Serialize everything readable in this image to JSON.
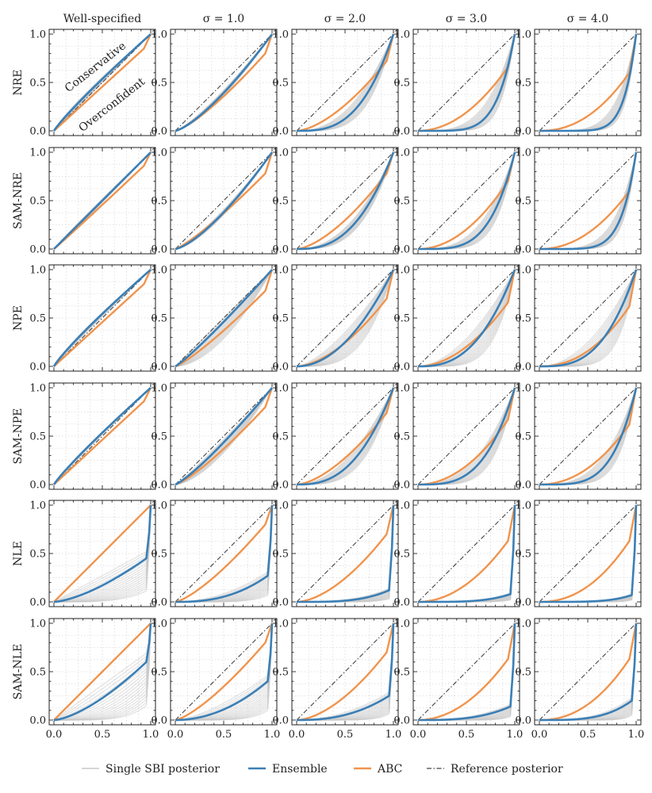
{
  "chart_data": {
    "type": "line",
    "description_grid": "6 rows x 5 columns of calibration curves",
    "columns": [
      "Well-specified",
      "σ = 1.0",
      "σ = 2.0",
      "σ = 3.0",
      "σ = 4.0"
    ],
    "rows": [
      "NRE",
      "SAM-NRE",
      "NPE",
      "SAM-NPE",
      "NLE",
      "SAM-NLE"
    ],
    "xlim": [
      0,
      1
    ],
    "ylim": [
      0,
      1
    ],
    "x_ticks": [
      "0.0",
      "0.5",
      "1.0"
    ],
    "y_ticks": [
      "0.0",
      "0.5",
      "1.0"
    ],
    "grid": true,
    "annotations": {
      "upper": "Conservative",
      "lower": "Overconfident"
    },
    "legend": {
      "position": "bottom",
      "entries": [
        {
          "key": "single",
          "label": "Single SBI posterior",
          "color": "#c8c8c8"
        },
        {
          "key": "ensemble",
          "label": "Ensemble",
          "color": "#3a7fb6"
        },
        {
          "key": "abc",
          "label": "ABC",
          "color": "#f0944d"
        },
        {
          "key": "reference",
          "label": "Reference posterior",
          "color": "#444444"
        }
      ]
    },
    "curve_model": "y = x^p, with a final rise to 1.0 when end value < 1",
    "panels": [
      [
        {
          "ens": [
            0.9,
            1.0
          ],
          "abc": [
            1.0,
            0.85
          ],
          "band": [
            0.85,
            1.0
          ]
        },
        {
          "ens": [
            1.35,
            1.0
          ],
          "abc": [
            1.3,
            0.8
          ],
          "band": [
            1.25,
            1.45
          ]
        },
        {
          "ens": [
            3.0,
            1.0
          ],
          "abc": [
            1.6,
            0.72
          ],
          "band": [
            2.3,
            4.0
          ]
        },
        {
          "ens": [
            5.5,
            1.0
          ],
          "abc": [
            2.0,
            0.66
          ],
          "band": [
            3.5,
            7.5
          ]
        },
        {
          "ens": [
            8.0,
            1.0
          ],
          "abc": [
            2.2,
            0.6
          ],
          "band": [
            5.0,
            10.0
          ]
        }
      ],
      [
        {
          "ens": [
            1.0,
            1.0
          ],
          "abc": [
            1.02,
            0.86
          ],
          "band": [
            0.95,
            1.05
          ]
        },
        {
          "ens": [
            1.4,
            1.0
          ],
          "abc": [
            1.2,
            0.78
          ],
          "band": [
            1.3,
            1.5
          ]
        },
        {
          "ens": [
            2.6,
            1.0
          ],
          "abc": [
            1.55,
            0.78
          ],
          "band": [
            2.2,
            3.2
          ]
        },
        {
          "ens": [
            4.0,
            1.0
          ],
          "abc": [
            2.0,
            0.7
          ],
          "band": [
            3.0,
            5.5
          ]
        },
        {
          "ens": [
            6.5,
            1.0
          ],
          "abc": [
            2.1,
            0.6
          ],
          "band": [
            4.5,
            8.5
          ]
        }
      ],
      [
        {
          "ens": [
            0.88,
            1.0
          ],
          "abc": [
            1.0,
            0.85
          ],
          "band": [
            0.85,
            0.95
          ]
        },
        {
          "ens": [
            1.12,
            1.0
          ],
          "abc": [
            1.2,
            0.78
          ],
          "band": [
            1.0,
            1.8
          ]
        },
        {
          "ens": [
            2.0,
            1.0
          ],
          "abc": [
            1.7,
            0.7
          ],
          "band": [
            1.5,
            3.5
          ]
        },
        {
          "ens": [
            2.6,
            1.0
          ],
          "abc": [
            1.9,
            0.66
          ],
          "band": [
            1.8,
            5.0
          ]
        },
        {
          "ens": [
            3.0,
            1.0
          ],
          "abc": [
            2.2,
            0.62
          ],
          "band": [
            2.0,
            6.0
          ]
        }
      ],
      [
        {
          "ens": [
            0.9,
            1.0
          ],
          "abc": [
            1.0,
            0.86
          ],
          "band": [
            0.88,
            0.95
          ]
        },
        {
          "ens": [
            1.2,
            1.0
          ],
          "abc": [
            1.25,
            0.8
          ],
          "band": [
            1.1,
            1.6
          ]
        },
        {
          "ens": [
            2.6,
            1.0
          ],
          "abc": [
            1.6,
            0.74
          ],
          "band": [
            2.0,
            3.6
          ]
        },
        {
          "ens": [
            3.3,
            1.0
          ],
          "abc": [
            2.0,
            0.67
          ],
          "band": [
            2.5,
            5.0
          ]
        },
        {
          "ens": [
            4.2,
            1.0
          ],
          "abc": [
            2.1,
            0.62
          ],
          "band": [
            3.0,
            6.0
          ]
        }
      ],
      [
        {
          "ens": [
            1.5,
            0.45
          ],
          "abc": [
            1.0,
            0.93
          ],
          "band": [
            1.0,
            4.0
          ]
        },
        {
          "ens": [
            2.5,
            0.27
          ],
          "abc": [
            1.35,
            0.8
          ],
          "band": [
            2.0,
            6.0
          ]
        },
        {
          "ens": [
            3.5,
            0.12
          ],
          "abc": [
            1.7,
            0.7
          ],
          "band": [
            2.8,
            8.0
          ]
        },
        {
          "ens": [
            4.0,
            0.08
          ],
          "abc": [
            2.0,
            0.63
          ],
          "band": [
            3.5,
            10.0
          ]
        },
        {
          "ens": [
            4.5,
            0.07
          ],
          "abc": [
            2.2,
            0.63
          ],
          "band": [
            4.0,
            12.0
          ]
        }
      ],
      [
        {
          "ens": [
            1.5,
            0.6
          ],
          "abc": [
            1.0,
            0.93
          ],
          "band": [
            1.0,
            5.0
          ]
        },
        {
          "ens": [
            2.0,
            0.4
          ],
          "abc": [
            1.35,
            0.8
          ],
          "band": [
            1.5,
            6.0
          ]
        },
        {
          "ens": [
            2.4,
            0.25
          ],
          "abc": [
            1.7,
            0.7
          ],
          "band": [
            2.0,
            8.0
          ]
        },
        {
          "ens": [
            3.0,
            0.14
          ],
          "abc": [
            2.0,
            0.63
          ],
          "band": [
            2.5,
            10.0
          ]
        },
        {
          "ens": [
            3.5,
            0.2
          ],
          "abc": [
            2.2,
            0.63
          ],
          "band": [
            3.0,
            12.0
          ]
        }
      ]
    ]
  }
}
